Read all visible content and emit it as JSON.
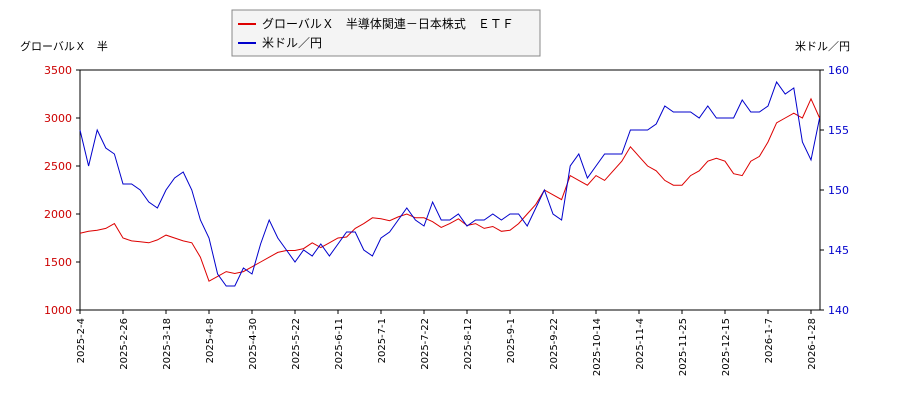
{
  "chart_data": {
    "type": "line",
    "y_label": "グローバルＸ　半",
    "y2_label": "米ドル／円",
    "categories": [
      "2025-2-4",
      null,
      null,
      null,
      null,
      "2025-2-26",
      null,
      null,
      null,
      null,
      "2025-3-18",
      null,
      null,
      null,
      null,
      "2025-4-8",
      null,
      null,
      null,
      null,
      "2025-4-30",
      null,
      null,
      null,
      null,
      "2025-5-22",
      null,
      null,
      null,
      null,
      "2025-6-11",
      null,
      null,
      null,
      null,
      "2025-7-1",
      null,
      null,
      null,
      null,
      "2025-7-22",
      null,
      null,
      null,
      null,
      "2025-8-12",
      null,
      null,
      null,
      null,
      "2025-9-1",
      null,
      null,
      null,
      null,
      "2025-9-22",
      null,
      null,
      null,
      null,
      "2025-10-14",
      null,
      null,
      null,
      null,
      "2025-11-4",
      null,
      null,
      null,
      null,
      "2025-11-25",
      null,
      null,
      null,
      null,
      "2025-12-15",
      null,
      null,
      null,
      null,
      "2026-1-7",
      null,
      null,
      null,
      null,
      "2026-1-28",
      null
    ],
    "series": [
      {
        "name": "グローバルＸ　半導体関連－日本株式　ＥＴＦ",
        "color": "#dd0000",
        "axis": "y",
        "values": [
          1800,
          1820,
          1830,
          1850,
          1900,
          1750,
          1720,
          1710,
          1700,
          1730,
          1780,
          1750,
          1720,
          1700,
          1550,
          1300,
          1350,
          1400,
          1380,
          1400,
          1450,
          1500,
          1550,
          1600,
          1620,
          1620,
          1640,
          1700,
          1650,
          1700,
          1750,
          1760,
          1850,
          1900,
          1960,
          1950,
          1930,
          1970,
          2000,
          1960,
          1960,
          1920,
          1860,
          1900,
          1950,
          1880,
          1900,
          1850,
          1870,
          1820,
          1830,
          1900,
          2000,
          2100,
          2250,
          2200,
          2150,
          2400,
          2350,
          2300,
          2400,
          2350,
          2450,
          2550,
          2700,
          2600,
          2500,
          2450,
          2350,
          2300,
          2300,
          2400,
          2450,
          2550,
          2580,
          2550,
          2420,
          2400,
          2550,
          2600,
          2750,
          2950,
          3000,
          3050,
          3000,
          3200,
          3000
        ]
      },
      {
        "name": "米ドル／円",
        "color": "#0000cc",
        "axis": "y2",
        "values": [
          155,
          152,
          155,
          153.5,
          153,
          150.5,
          150.5,
          150,
          149,
          148.5,
          150,
          151,
          151.5,
          150,
          147.5,
          146,
          143,
          142,
          142,
          143.5,
          143,
          145.5,
          147.5,
          146,
          145,
          144,
          145,
          144.5,
          145.5,
          144.5,
          145.5,
          146.5,
          146.5,
          145,
          144.5,
          146,
          146.5,
          147.5,
          148.5,
          147.5,
          147,
          149,
          147.5,
          147.5,
          148,
          147,
          147.5,
          147.5,
          148,
          147.5,
          148,
          148,
          147,
          148.5,
          150,
          148,
          147.5,
          152,
          153,
          151,
          152,
          153,
          153,
          153,
          155,
          155,
          155,
          155.5,
          157,
          156.5,
          156.5,
          156.5,
          156,
          157,
          156,
          156,
          156,
          157.5,
          156.5,
          156.5,
          157,
          159,
          158,
          158.5,
          154,
          152.5,
          156
        ]
      }
    ],
    "ylim": [
      1000,
      3500
    ],
    "yticks": [
      1000,
      1500,
      2000,
      2500,
      3000,
      3500
    ],
    "ytick_color": "#cc0000",
    "y2lim": [
      140,
      160
    ],
    "y2ticks": [
      140,
      145,
      150,
      155,
      160
    ],
    "y2tick_color": "#0000cc",
    "grid": false
  }
}
